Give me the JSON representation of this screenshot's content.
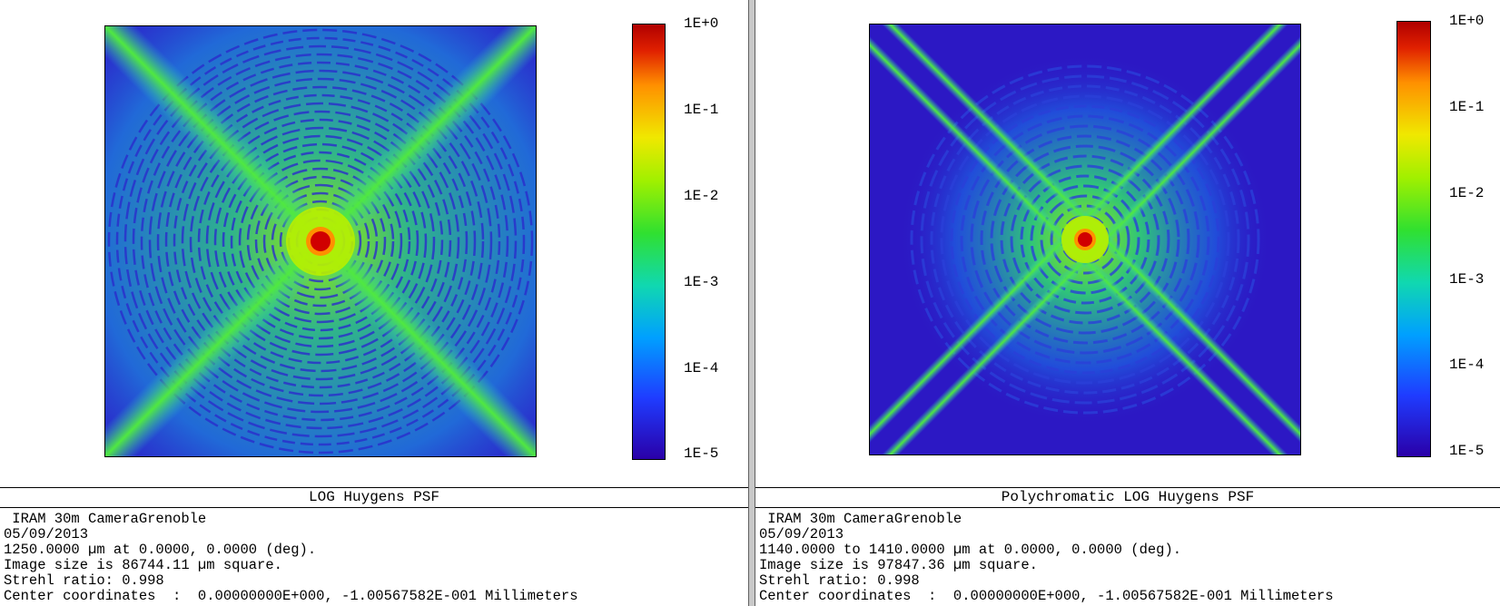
{
  "panels": [
    {
      "colorbar_labels": [
        "1E+0",
        "1E-1",
        "1E-2",
        "1E-3",
        "1E-4",
        "1E-5"
      ],
      "title": "LOG Huygens PSF",
      "info": [
        " IRAM 30m CameraGrenoble",
        "05/09/2013",
        "1250.0000 µm at 0.0000, 0.0000 (deg).",
        "Image size is 86744.11 µm square.",
        "Strehl ratio: 0.998",
        "Center coordinates  :  0.00000000E+000, -1.00567582E-001 Millimeters"
      ]
    },
    {
      "colorbar_labels": [
        "1E+0",
        "1E-1",
        "1E-2",
        "1E-3",
        "1E-4",
        "1E-5"
      ],
      "title": "Polychromatic LOG Huygens PSF",
      "info": [
        " IRAM 30m CameraGrenoble",
        "05/09/2013",
        "1140.0000 to 1410.0000 µm at 0.0000, 0.0000 (deg).",
        "Image size is 97847.36 µm square.",
        "Strehl ratio: 0.998",
        "Center coordinates  :  0.00000000E+000, -1.00567582E-001 Millimeters"
      ]
    }
  ]
}
